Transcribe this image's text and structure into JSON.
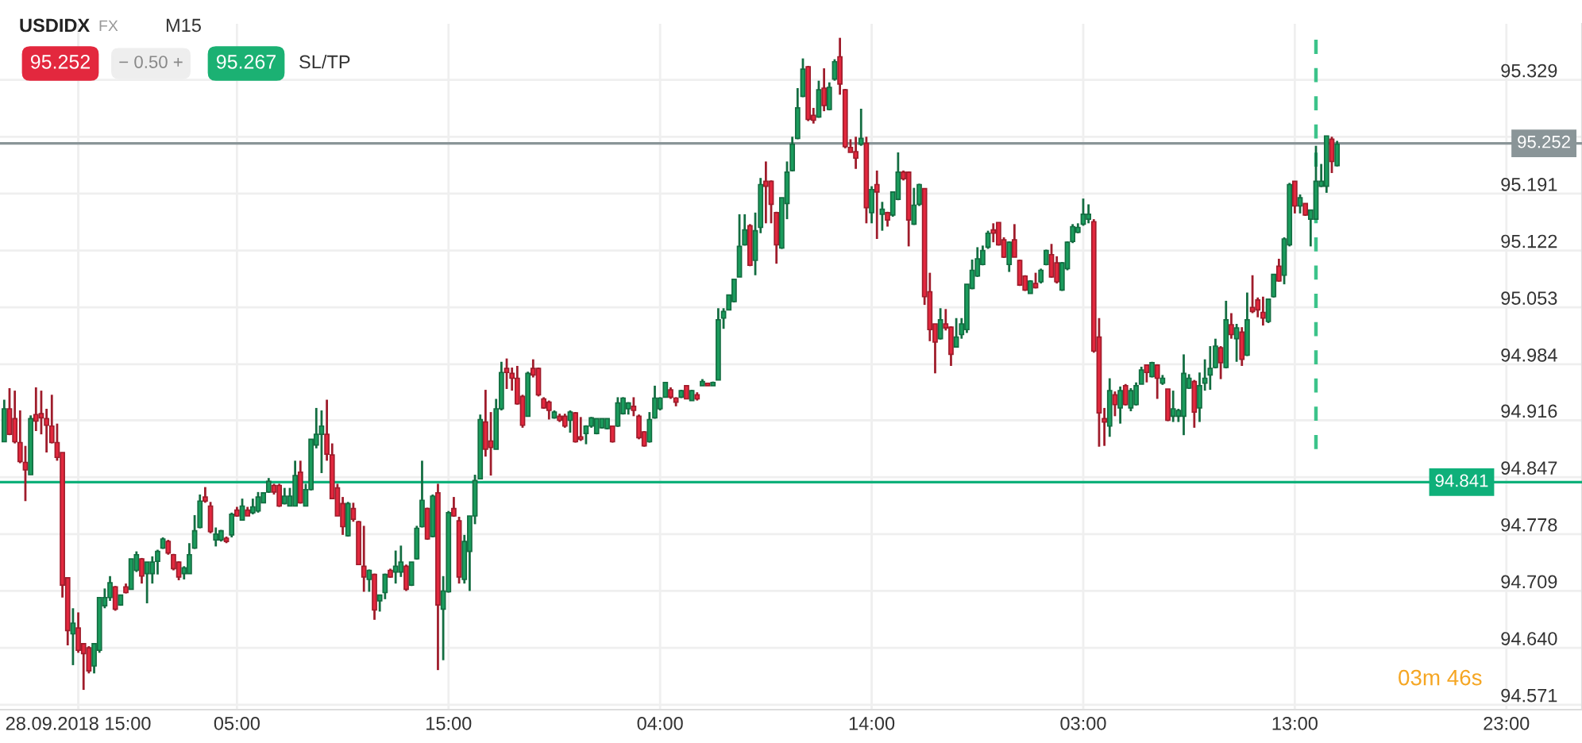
{
  "chart_data": {
    "type": "candlestick",
    "title": "USDIDX",
    "annotations": [
      "FX",
      "M15",
      "95.252",
      "− 0.50 +",
      "95.267",
      "SL/TP",
      "03m 46s"
    ],
    "categories": [
      null,
      null,
      null,
      null,
      null,
      null,
      null,
      null,
      null,
      null,
      null,
      null,
      null,
      null,
      "28.09.2018 15:00",
      null,
      null,
      null,
      null,
      null,
      null,
      null,
      null,
      null,
      null,
      null,
      null,
      null,
      null,
      null,
      null,
      null,
      null,
      null,
      null,
      null,
      null,
      null,
      null,
      null,
      null,
      null,
      null,
      null,
      "05:00",
      null,
      null,
      null,
      null,
      null,
      null,
      null,
      null,
      null,
      null,
      null,
      null,
      null,
      null,
      null,
      null,
      null,
      null,
      null,
      null,
      null,
      null,
      null,
      null,
      null,
      null,
      null,
      null,
      null,
      null,
      null,
      null,
      null,
      null,
      null,
      null,
      null,
      null,
      null,
      "15:00",
      null,
      null,
      null,
      null,
      null,
      null,
      null,
      null,
      null,
      null,
      null,
      null,
      null,
      null,
      null,
      null,
      null,
      null,
      null,
      null,
      null,
      null,
      null,
      null,
      null,
      null,
      null,
      null,
      null,
      null,
      null,
      null,
      null,
      null,
      null,
      null,
      null,
      null,
      null,
      "04:00",
      null,
      null,
      null,
      null,
      null,
      null,
      null,
      null,
      null,
      null,
      null,
      null,
      null,
      null,
      null,
      null,
      null,
      null,
      null,
      null,
      null,
      null,
      null,
      null,
      null,
      null,
      null,
      null,
      null,
      null,
      null,
      null,
      null,
      null,
      null,
      null,
      null,
      null,
      null,
      "14:00",
      null,
      null,
      null,
      null,
      null,
      null,
      null,
      null,
      null,
      null,
      null,
      null,
      null,
      null,
      null,
      null,
      null,
      null,
      null,
      null,
      null,
      null,
      null,
      null,
      null,
      null,
      null,
      null,
      null,
      null,
      null,
      null,
      null,
      null,
      null,
      null,
      null,
      null,
      null,
      "03:00",
      null,
      null,
      null,
      null,
      null,
      null,
      null,
      null,
      null,
      null,
      null,
      null,
      null,
      null,
      null,
      null,
      null,
      null,
      null,
      null,
      null,
      null,
      null,
      null,
      null,
      null,
      null,
      null,
      null,
      null,
      null,
      null,
      null,
      null,
      null,
      null,
      null,
      null,
      null,
      "13:00",
      null,
      null,
      null,
      null,
      null,
      null,
      null,
      null,
      null,
      null,
      null,
      null,
      null,
      null,
      null,
      null,
      null,
      null,
      null,
      null,
      null,
      null,
      null,
      null,
      null,
      null,
      null,
      null,
      null,
      null,
      null,
      null,
      null,
      null,
      null,
      null,
      null,
      null,
      null,
      "23:00"
    ],
    "ohlc": [
      [
        94.89,
        94.941,
        94.89,
        94.93
      ],
      [
        94.93,
        94.955,
        94.898,
        94.899
      ],
      [
        94.918,
        94.952,
        94.888,
        94.89
      ],
      [
        94.889,
        94.928,
        94.864,
        94.866
      ],
      [
        94.865,
        94.885,
        94.818,
        94.856
      ],
      [
        94.85,
        94.922,
        94.85,
        94.918
      ],
      [
        94.923,
        94.956,
        94.903,
        94.915
      ],
      [
        94.924,
        94.952,
        94.899,
        94.919
      ],
      [
        94.918,
        94.93,
        94.877,
        94.91
      ],
      [
        94.909,
        94.947,
        94.888,
        94.889
      ],
      [
        94.889,
        94.912,
        94.867,
        94.871
      ],
      [
        94.877,
        94.877,
        94.701,
        94.716
      ],
      [
        94.725,
        94.725,
        94.643,
        94.661
      ],
      [
        94.657,
        94.688,
        94.619,
        94.67
      ],
      [
        94.664,
        94.683,
        94.634,
        94.637
      ],
      [
        94.645,
        94.645,
        94.589,
        94.633
      ],
      [
        94.64,
        94.642,
        94.609,
        94.612
      ],
      [
        94.618,
        94.645,
        94.609,
        94.645
      ],
      [
        94.637,
        94.701,
        94.634,
        94.701
      ],
      [
        94.691,
        94.712,
        94.688,
        94.701
      ],
      [
        94.701,
        94.727,
        94.697,
        94.719
      ],
      [
        94.714,
        94.715,
        94.685,
        94.687
      ],
      [
        94.692,
        94.704,
        94.691,
        94.704
      ],
      [
        94.714,
        94.718,
        94.706,
        94.707
      ],
      [
        94.711,
        94.748,
        94.711,
        94.748
      ],
      [
        94.734,
        94.757,
        94.732,
        94.753
      ],
      [
        94.748,
        94.749,
        94.718,
        94.727
      ],
      [
        94.73,
        94.744,
        94.694,
        94.744
      ],
      [
        94.73,
        94.751,
        94.718,
        94.744
      ],
      [
        94.745,
        94.759,
        94.729,
        94.757
      ],
      [
        94.761,
        94.774,
        94.76,
        94.772
      ],
      [
        94.769,
        94.771,
        94.753,
        94.755
      ],
      [
        94.753,
        94.754,
        94.734,
        94.736
      ],
      [
        94.744,
        94.745,
        94.722,
        94.726
      ],
      [
        94.73,
        94.739,
        94.723,
        94.737
      ],
      [
        94.73,
        94.767,
        94.73,
        94.753
      ],
      [
        94.761,
        94.801,
        94.76,
        94.782
      ],
      [
        94.786,
        94.826,
        94.785,
        94.818
      ],
      [
        94.823,
        94.835,
        94.816,
        94.818
      ],
      [
        94.812,
        94.817,
        94.779,
        94.781
      ],
      [
        94.771,
        94.786,
        94.763,
        94.778
      ],
      [
        94.771,
        94.783,
        94.769,
        94.782
      ],
      [
        94.773,
        94.775,
        94.767,
        94.769
      ],
      [
        94.777,
        94.804,
        94.774,
        94.802
      ],
      [
        94.807,
        94.811,
        94.799,
        94.8
      ],
      [
        94.795,
        94.821,
        94.795,
        94.812
      ],
      [
        94.807,
        94.811,
        94.8,
        94.8
      ],
      [
        94.804,
        94.821,
        94.802,
        94.811
      ],
      [
        94.806,
        94.829,
        94.804,
        94.823
      ],
      [
        94.816,
        94.828,
        94.816,
        94.828
      ],
      [
        94.829,
        94.846,
        94.828,
        94.842
      ],
      [
        94.837,
        94.839,
        94.826,
        94.829
      ],
      [
        94.837,
        94.839,
        94.811,
        94.812
      ],
      [
        94.815,
        94.834,
        94.814,
        94.824
      ],
      [
        94.812,
        94.834,
        94.812,
        94.824
      ],
      [
        94.812,
        94.867,
        94.812,
        94.849
      ],
      [
        94.853,
        94.867,
        94.815,
        94.816
      ],
      [
        94.812,
        94.839,
        94.812,
        94.832
      ],
      [
        94.832,
        94.893,
        94.831,
        94.893
      ],
      [
        94.886,
        94.931,
        94.882,
        94.899
      ],
      [
        94.899,
        94.928,
        94.852,
        94.909
      ],
      [
        94.899,
        94.941,
        94.867,
        94.875
      ],
      [
        94.874,
        94.888,
        94.821,
        94.821
      ],
      [
        94.834,
        94.839,
        94.8,
        94.8
      ],
      [
        94.815,
        94.823,
        94.777,
        94.787
      ],
      [
        94.776,
        94.817,
        94.775,
        94.815
      ],
      [
        94.809,
        94.816,
        94.793,
        94.796
      ],
      [
        94.793,
        94.794,
        94.741,
        94.741
      ],
      [
        94.739,
        94.788,
        94.708,
        94.726
      ],
      [
        94.723,
        94.735,
        94.708,
        94.734
      ],
      [
        94.729,
        94.73,
        94.674,
        94.686
      ],
      [
        94.697,
        94.704,
        94.684,
        94.704
      ],
      [
        94.707,
        94.73,
        94.699,
        94.729
      ],
      [
        94.734,
        94.736,
        94.725,
        94.726
      ],
      [
        94.732,
        94.758,
        94.718,
        94.739
      ],
      [
        94.732,
        94.764,
        94.726,
        94.744
      ],
      [
        94.739,
        94.741,
        94.709,
        94.711
      ],
      [
        94.716,
        94.744,
        94.715,
        94.744
      ],
      [
        94.748,
        94.788,
        94.747,
        94.785
      ],
      [
        94.787,
        94.867,
        94.786,
        94.819
      ],
      [
        94.809,
        94.81,
        94.771,
        94.772
      ],
      [
        94.775,
        94.826,
        94.774,
        94.824
      ],
      [
        94.828,
        94.839,
        94.613,
        94.692
      ],
      [
        94.687,
        94.727,
        94.625,
        94.709
      ],
      [
        94.708,
        94.806,
        94.707,
        94.804
      ],
      [
        94.809,
        94.823,
        94.799,
        94.8
      ],
      [
        94.794,
        94.799,
        94.718,
        94.726
      ],
      [
        94.723,
        94.777,
        94.718,
        94.769
      ],
      [
        94.757,
        94.8,
        94.709,
        94.8
      ],
      [
        94.8,
        94.85,
        94.79,
        94.843
      ],
      [
        94.845,
        94.923,
        94.845,
        94.917
      ],
      [
        94.914,
        94.953,
        94.872,
        94.881
      ],
      [
        94.891,
        94.926,
        94.849,
        94.883
      ],
      [
        94.881,
        94.942,
        94.881,
        94.93
      ],
      [
        94.93,
        94.987,
        94.928,
        94.974
      ],
      [
        94.979,
        94.991,
        94.954,
        94.974
      ],
      [
        94.973,
        94.98,
        94.952,
        94.967
      ],
      [
        94.967,
        94.982,
        94.935,
        94.936
      ],
      [
        94.945,
        94.947,
        94.907,
        94.91
      ],
      [
        94.921,
        94.975,
        94.921,
        94.973
      ],
      [
        94.979,
        94.99,
        94.968,
        94.971
      ],
      [
        94.979,
        94.98,
        94.945,
        94.947
      ],
      [
        94.942,
        94.944,
        94.93,
        94.931
      ],
      [
        94.938,
        94.94,
        94.917,
        94.928
      ],
      [
        94.919,
        94.928,
        94.918,
        94.926
      ],
      [
        94.921,
        94.924,
        94.914,
        94.916
      ],
      [
        94.921,
        94.924,
        94.907,
        94.909
      ],
      [
        94.916,
        94.928,
        94.901,
        94.926
      ],
      [
        94.925,
        94.926,
        94.889,
        94.89
      ],
      [
        94.896,
        94.92,
        94.891,
        94.893
      ],
      [
        94.9,
        94.91,
        94.887,
        94.909
      ],
      [
        94.909,
        94.92,
        94.907,
        94.919
      ],
      [
        94.9,
        94.918,
        94.899,
        94.918
      ],
      [
        94.907,
        94.918,
        94.906,
        94.918
      ],
      [
        94.906,
        94.918,
        94.905,
        94.918
      ],
      [
        94.909,
        94.909,
        94.889,
        94.89
      ],
      [
        94.909,
        94.944,
        94.908,
        94.937
      ],
      [
        94.924,
        94.944,
        94.923,
        94.943
      ],
      [
        94.93,
        94.938,
        94.923,
        94.937
      ],
      [
        94.933,
        94.944,
        94.921,
        94.928
      ],
      [
        94.921,
        94.923,
        94.893,
        94.895
      ],
      [
        94.902,
        94.903,
        94.884,
        94.885
      ],
      [
        94.89,
        94.926,
        94.889,
        94.917
      ],
      [
        94.919,
        94.958,
        94.918,
        94.943
      ],
      [
        94.93,
        94.944,
        94.928,
        94.943
      ],
      [
        94.944,
        94.962,
        94.944,
        94.962
      ],
      [
        94.953,
        94.956,
        94.942,
        94.944
      ],
      [
        94.943,
        94.944,
        94.933,
        94.938
      ],
      [
        94.944,
        94.953,
        94.943,
        94.952
      ],
      [
        94.958,
        94.958,
        94.942,
        94.942
      ],
      [
        94.94,
        94.953,
        94.94,
        94.952
      ],
      [
        94.947,
        94.95,
        94.94,
        94.942
      ],
      [
        94.958,
        94.966,
        94.958,
        94.963
      ],
      [
        94.961,
        94.961,
        94.958,
        94.958
      ],
      [
        94.958,
        94.963,
        94.958,
        94.962
      ],
      [
        94.965,
        95.052,
        94.965,
        95.038
      ],
      [
        95.04,
        95.052,
        95.027,
        95.048
      ],
      [
        95.05,
        95.068,
        95.05,
        95.068
      ],
      [
        95.06,
        95.087,
        95.059,
        95.087
      ],
      [
        95.09,
        95.166,
        95.09,
        95.127
      ],
      [
        95.129,
        95.166,
        95.128,
        95.147
      ],
      [
        95.152,
        95.154,
        95.103,
        95.104
      ],
      [
        95.11,
        95.168,
        95.092,
        95.146
      ],
      [
        95.15,
        95.21,
        95.143,
        95.202
      ],
      [
        95.206,
        95.23,
        95.155,
        95.2
      ],
      [
        95.206,
        95.207,
        95.155,
        95.178
      ],
      [
        95.168,
        95.169,
        95.106,
        95.129
      ],
      [
        95.125,
        95.186,
        95.124,
        95.186
      ],
      [
        95.179,
        95.23,
        95.16,
        95.217
      ],
      [
        95.219,
        95.26,
        95.218,
        95.251
      ],
      [
        95.258,
        95.319,
        95.257,
        95.295
      ],
      [
        95.309,
        95.355,
        95.308,
        95.342
      ],
      [
        95.345,
        95.346,
        95.279,
        95.281
      ],
      [
        95.286,
        95.295,
        95.276,
        95.28
      ],
      [
        95.284,
        95.328,
        95.283,
        95.317
      ],
      [
        95.319,
        95.343,
        95.291,
        95.298
      ],
      [
        95.293,
        95.326,
        95.292,
        95.32
      ],
      [
        95.33,
        95.354,
        95.328,
        95.351
      ],
      [
        95.357,
        95.38,
        95.311,
        95.324
      ],
      [
        95.317,
        95.318,
        95.246,
        95.248
      ],
      [
        95.247,
        95.257,
        95.241,
        95.241
      ],
      [
        95.242,
        95.26,
        95.221,
        95.234
      ],
      [
        95.251,
        95.294,
        95.249,
        95.258
      ],
      [
        95.252,
        95.26,
        95.155,
        95.174
      ],
      [
        95.168,
        95.2,
        95.155,
        95.196
      ],
      [
        95.202,
        95.219,
        95.136,
        95.193
      ],
      [
        95.166,
        95.181,
        95.146,
        95.172
      ],
      [
        95.168,
        95.169,
        95.151,
        95.159
      ],
      [
        95.165,
        95.193,
        95.163,
        95.193
      ],
      [
        95.184,
        95.241,
        95.183,
        95.217
      ],
      [
        95.217,
        95.219,
        95.207,
        95.209
      ],
      [
        95.217,
        95.218,
        95.127,
        95.159
      ],
      [
        95.154,
        95.198,
        95.153,
        95.177
      ],
      [
        95.178,
        95.203,
        95.176,
        95.202
      ],
      [
        95.197,
        95.197,
        95.056,
        95.066
      ],
      [
        95.072,
        95.095,
        95.012,
        95.026
      ],
      [
        95.033,
        95.033,
        94.973,
        95.011
      ],
      [
        95.015,
        95.052,
        95.014,
        95.038
      ],
      [
        95.033,
        95.051,
        95.025,
        95.028
      ],
      [
        95.029,
        95.03,
        94.982,
        94.996
      ],
      [
        95.005,
        95.04,
        95.005,
        95.017
      ],
      [
        95.02,
        95.04,
        95.015,
        95.033
      ],
      [
        95.026,
        95.081,
        95.022,
        95.081
      ],
      [
        95.076,
        95.111,
        95.075,
        95.098
      ],
      [
        95.091,
        95.126,
        95.09,
        95.112
      ],
      [
        95.105,
        95.128,
        95.104,
        95.122
      ],
      [
        95.126,
        95.146,
        95.124,
        95.143
      ],
      [
        95.147,
        95.155,
        95.132,
        95.143
      ],
      [
        95.156,
        95.156,
        95.128,
        95.129
      ],
      [
        95.135,
        95.138,
        95.113,
        95.114
      ],
      [
        95.105,
        95.133,
        95.096,
        95.132
      ],
      [
        95.135,
        95.154,
        95.114,
        95.114
      ],
      [
        95.11,
        95.111,
        95.079,
        95.08
      ],
      [
        95.091,
        95.092,
        95.073,
        95.074
      ],
      [
        95.07,
        95.086,
        95.07,
        95.085
      ],
      [
        95.082,
        95.095,
        95.076,
        95.077
      ],
      [
        95.084,
        95.1,
        95.082,
        95.098
      ],
      [
        95.105,
        95.123,
        95.104,
        95.122
      ],
      [
        95.117,
        95.13,
        95.089,
        95.09
      ],
      [
        95.107,
        95.115,
        95.082,
        95.084
      ],
      [
        95.074,
        95.108,
        95.073,
        95.107
      ],
      [
        95.1,
        95.133,
        95.098,
        95.132
      ],
      [
        95.133,
        95.154,
        95.131,
        95.151
      ],
      [
        95.144,
        95.155,
        95.143,
        95.15
      ],
      [
        95.154,
        95.185,
        95.152,
        95.166
      ],
      [
        95.16,
        95.178,
        95.155,
        95.166
      ],
      [
        95.157,
        95.16,
        94.998,
        95.0
      ],
      [
        95.017,
        95.04,
        94.884,
        94.925
      ],
      [
        94.918,
        94.931,
        94.885,
        94.914
      ],
      [
        94.909,
        94.967,
        94.896,
        94.952
      ],
      [
        94.947,
        94.951,
        94.921,
        94.935
      ],
      [
        94.931,
        94.957,
        94.912,
        94.952
      ],
      [
        94.958,
        94.96,
        94.934,
        94.935
      ],
      [
        94.931,
        94.955,
        94.927,
        94.952
      ],
      [
        94.935,
        94.962,
        94.934,
        94.958
      ],
      [
        94.96,
        94.981,
        94.96,
        94.977
      ],
      [
        94.983,
        94.983,
        94.962,
        94.974
      ],
      [
        94.969,
        94.987,
        94.968,
        94.986
      ],
      [
        94.983,
        94.984,
        94.942,
        94.967
      ],
      [
        94.961,
        94.971,
        94.959,
        94.967
      ],
      [
        94.954,
        94.954,
        94.915,
        94.916
      ],
      [
        94.921,
        94.952,
        94.914,
        94.93
      ],
      [
        94.921,
        94.93,
        94.914,
        94.928
      ],
      [
        94.921,
        94.996,
        94.898,
        94.973
      ],
      [
        94.955,
        94.972,
        94.954,
        94.967
      ],
      [
        94.963,
        94.965,
        94.907,
        94.926
      ],
      [
        94.931,
        94.974,
        94.914,
        94.958
      ],
      [
        94.961,
        94.99,
        94.952,
        94.967
      ],
      [
        94.971,
        95.006,
        94.953,
        94.979
      ],
      [
        94.98,
        95.015,
        94.979,
        95.006
      ],
      [
        95.004,
        95.006,
        94.966,
        94.986
      ],
      [
        94.98,
        95.061,
        94.979,
        95.038
      ],
      [
        95.032,
        95.046,
        95.015,
        95.02
      ],
      [
        95.015,
        95.033,
        94.987,
        95.028
      ],
      [
        95.023,
        95.029,
        94.982,
        94.99
      ],
      [
        94.995,
        95.071,
        94.994,
        95.038
      ],
      [
        95.053,
        95.092,
        95.046,
        95.048
      ],
      [
        95.062,
        95.065,
        95.041,
        95.05
      ],
      [
        95.047,
        95.066,
        95.031,
        95.04
      ],
      [
        95.036,
        95.063,
        95.034,
        95.063
      ],
      [
        95.066,
        95.093,
        95.065,
        95.093
      ],
      [
        95.103,
        95.112,
        95.084,
        95.085
      ],
      [
        95.092,
        95.138,
        95.081,
        95.136
      ],
      [
        95.129,
        95.204,
        95.127,
        95.202
      ],
      [
        95.206,
        95.206,
        95.167,
        95.176
      ],
      [
        95.176,
        95.19,
        95.167,
        95.186
      ],
      [
        95.179,
        95.179,
        95.164,
        95.165
      ],
      [
        95.16,
        95.171,
        95.127,
        95.171
      ],
      [
        95.16,
        95.249,
        95.16,
        95.206
      ],
      [
        95.2,
        95.227,
        95.199,
        95.206
      ],
      [
        95.2,
        95.261,
        95.192,
        95.261
      ],
      [
        95.257,
        95.26,
        95.216,
        95.23
      ],
      [
        95.225,
        95.255,
        95.224,
        95.251
      ],
      null,
      null,
      null,
      null,
      null,
      null,
      null,
      null,
      null,
      null,
      null,
      null,
      null,
      null,
      null,
      null,
      null,
      null,
      null,
      null,
      null,
      null,
      null,
      null,
      null,
      null,
      null,
      null,
      null,
      null,
      null,
      null
    ],
    "ylim": [
      94.565,
      95.397
    ],
    "yticks": [
      94.571,
      {
        "value": 94.64,
        "label": "94.640"
      },
      94.709,
      94.778,
      94.847,
      94.916,
      94.984,
      95.053,
      95.122,
      95.191,
      {
        "value": 95.26,
        "label": null
      },
      95.329
    ],
    "grid": true,
    "ref_lines": [
      {
        "axis": "y",
        "value": 95.252,
        "label": "95.252",
        "color": "#8a9598",
        "line_style": "solid"
      },
      {
        "axis": "y",
        "value": 94.841,
        "label": "94.841",
        "color": "#0fb07a",
        "line_style": "solid"
      }
    ]
  }
}
